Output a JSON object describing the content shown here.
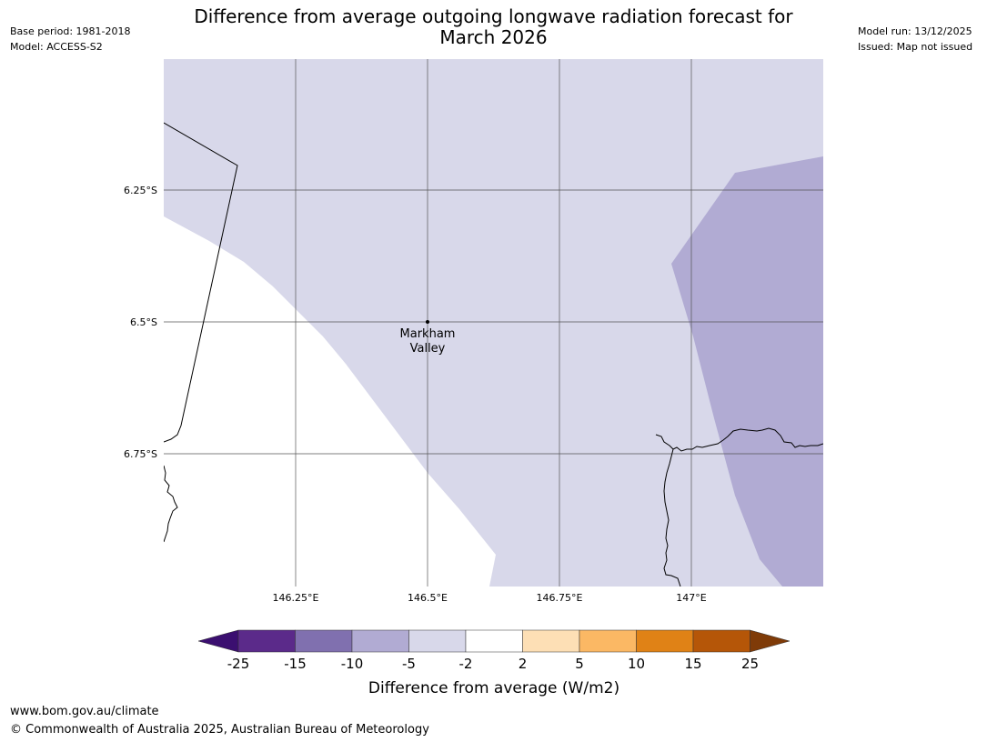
{
  "title_line1": "Difference from average outgoing longwave radiation forecast for",
  "title_line2": "March 2026",
  "base_period": "Base period: 1981-2018",
  "model": "Model: ACCESS-S2",
  "model_run": "Model run: 13/12/2025",
  "issued": "Issued: Map not issued",
  "map": {
    "place_label_line1": "Markham",
    "place_label_line2": "Valley",
    "lat_labels": [
      "6.25°S",
      "6.5°S",
      "6.75°S"
    ],
    "lon_labels": [
      "146.25°E",
      "146.5°E",
      "146.75°E",
      "147°E"
    ],
    "colors": {
      "land_fill": "#d8d8ea",
      "lower_fill": "#b1abd3",
      "neutral": "#ffffff",
      "grid": "#555555",
      "coast": "#000000"
    }
  },
  "colorbar": {
    "label": "Difference from average (W/m2)",
    "ticks": [
      "-25",
      "-15",
      "-10",
      "-5",
      "-2",
      "2",
      "5",
      "10",
      "15",
      "25"
    ],
    "colors": [
      "#3b0f70",
      "#5b2a8a",
      "#8070af",
      "#b1abd3",
      "#d8d8ea",
      "#ffffff",
      "#fddfb5",
      "#fbb864",
      "#e08216",
      "#b55608",
      "#7f3b08"
    ]
  },
  "footer_url": "www.bom.gov.au/climate",
  "footer_copyright": "© Commonwealth of Australia 2025, Australian Bureau of Meteorology"
}
